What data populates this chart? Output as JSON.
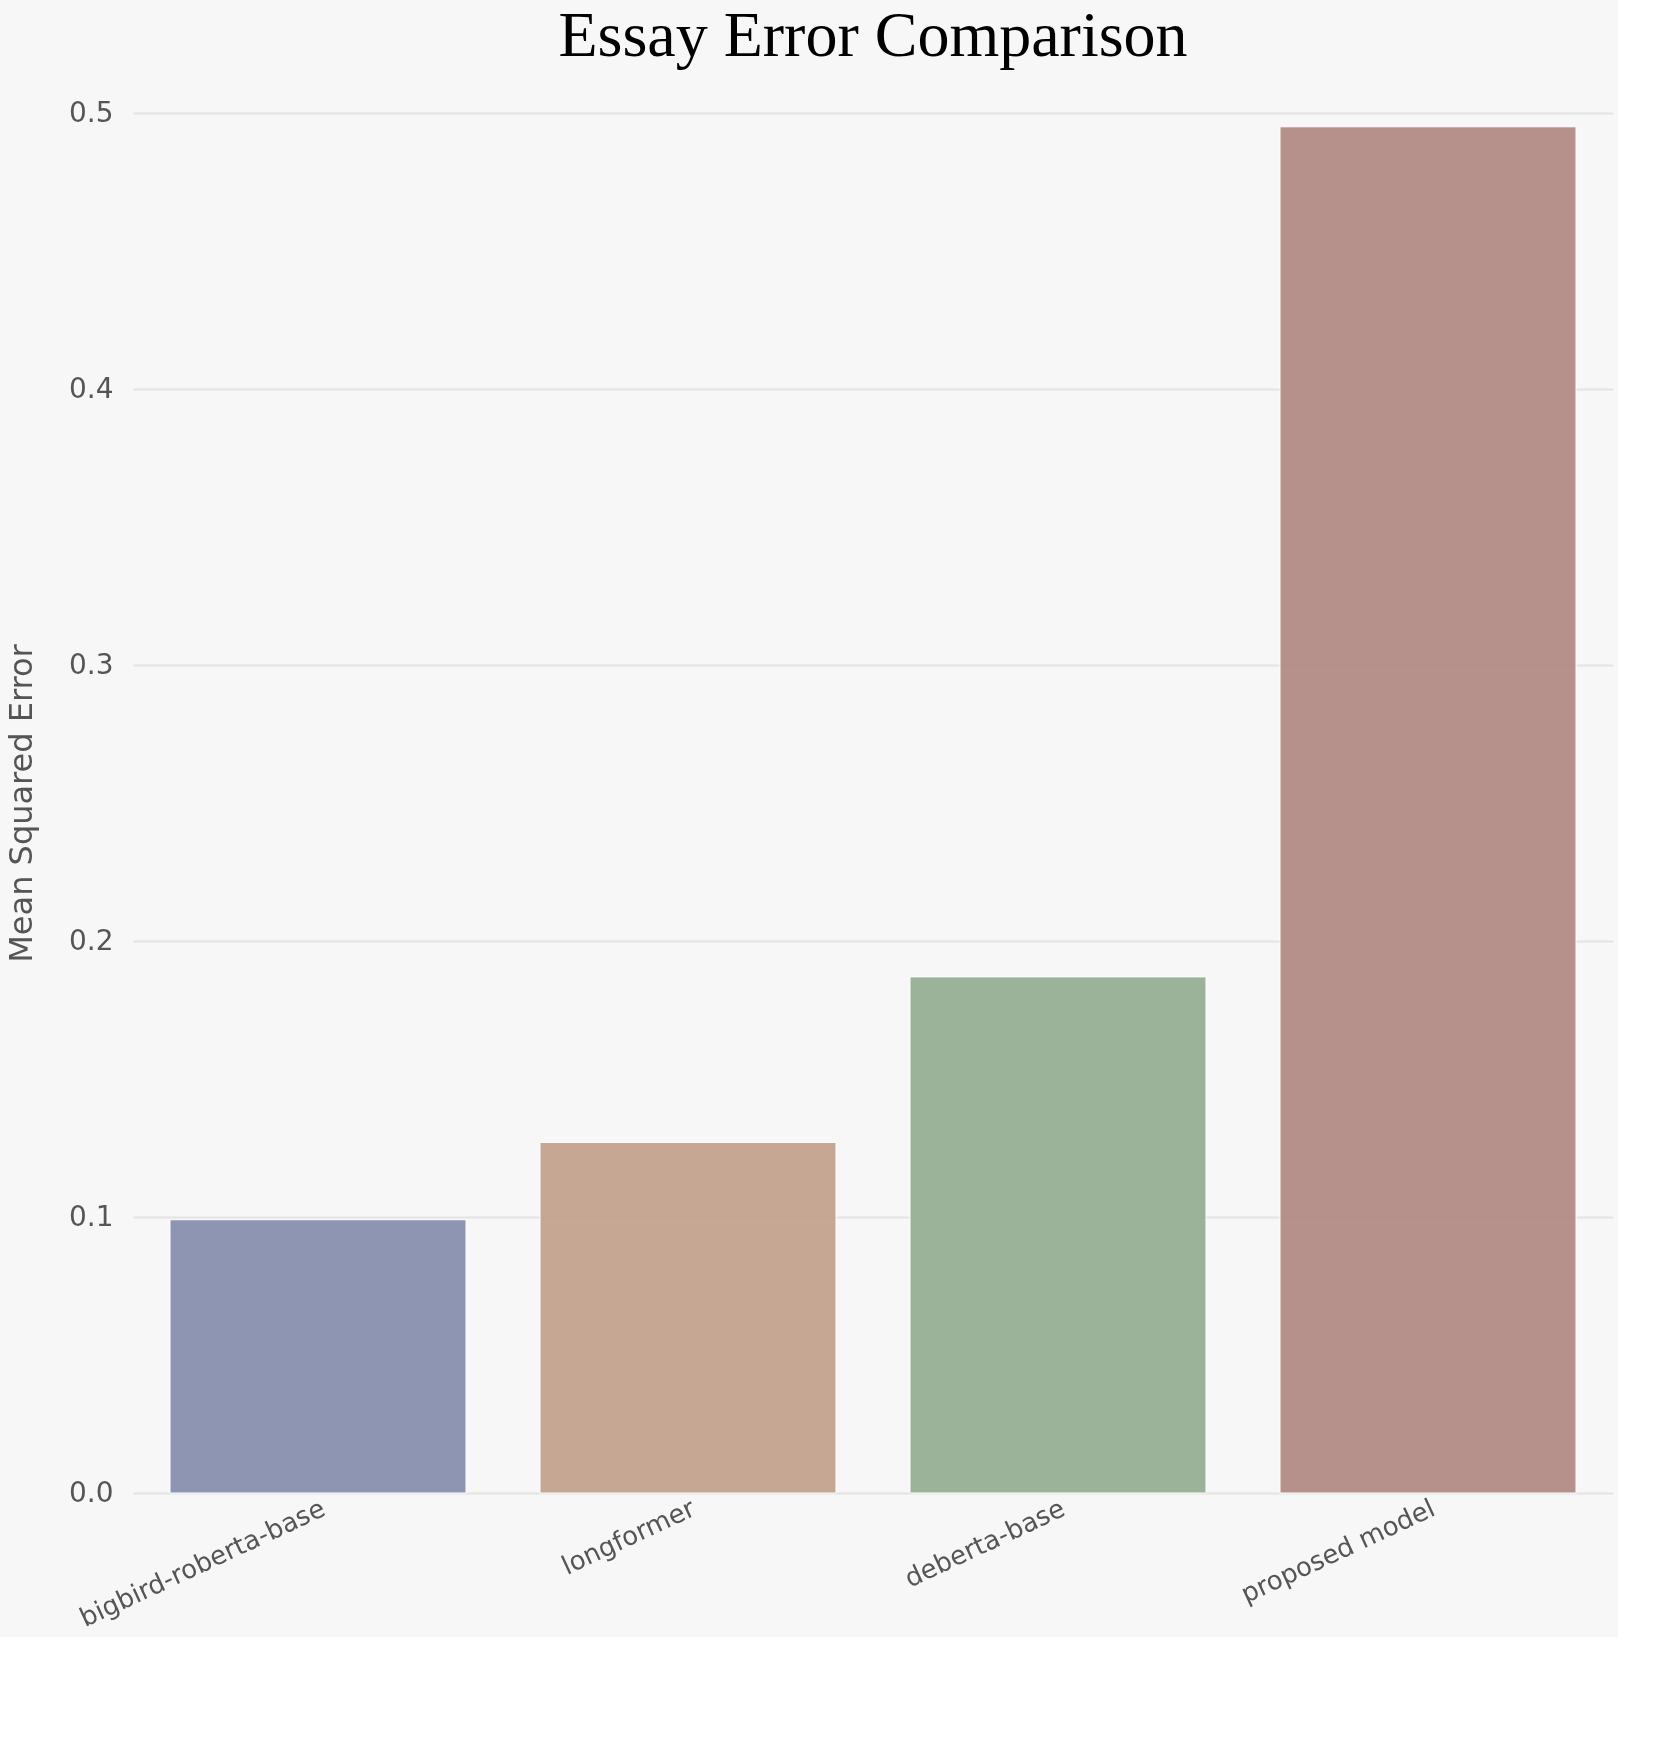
{
  "chart_data": {
    "type": "bar",
    "title": "Essay Error Comparison",
    "ylabel": "Mean Squared Error",
    "categories": [
      "bigbird-roberta-base",
      "longformer",
      "deberta-base",
      "proposed model"
    ],
    "values": [
      0.099,
      0.127,
      0.187,
      0.495
    ],
    "colors": [
      "#8990b0",
      "#c4a38f",
      "#97b095",
      "#b38b86"
    ],
    "ylim": [
      0,
      0.5
    ],
    "yticks": [
      {
        "value": 0,
        "label": "0.0"
      },
      0.1,
      0.2,
      0.3,
      0.4,
      0.5
    ],
    "grid": "y"
  }
}
